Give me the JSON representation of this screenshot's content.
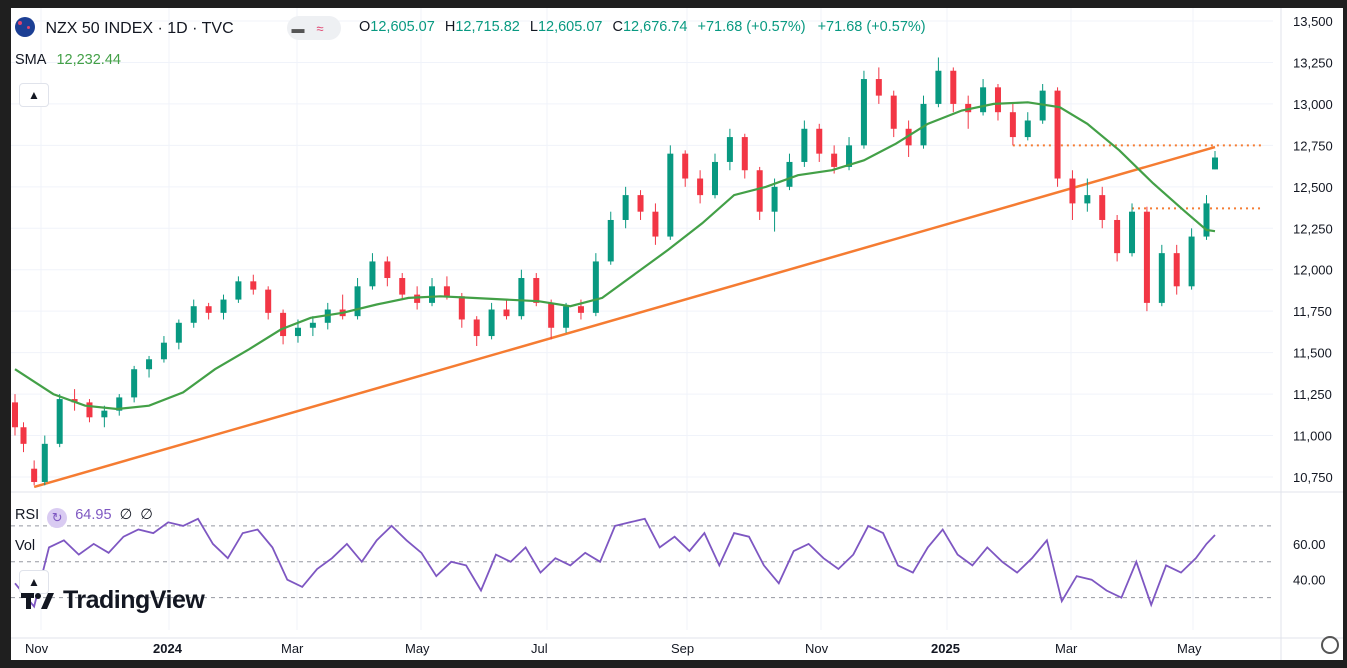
{
  "header": {
    "symbol_title": "NZX 50 INDEX · 1D · TVC",
    "ohlc": [
      {
        "label": "O",
        "value": "12,605.07"
      },
      {
        "label": "H",
        "value": "12,715.82"
      },
      {
        "label": "L",
        "value": "12,605.07"
      },
      {
        "label": "C",
        "value": "12,676.74"
      }
    ],
    "change": "+71.68 (+0.57%)",
    "change2": "+71.68 (+0.57%)",
    "sma_label": "SMA",
    "sma_value": "12,232.44",
    "rsi_label": "RSI",
    "rsi_value": "64.95",
    "rsi_extra1": "∅",
    "rsi_extra2": "∅",
    "vol_label": "Vol"
  },
  "brand": {
    "logo_text": "TradingView"
  },
  "colors": {
    "up": "#089981",
    "down": "#f23645",
    "sma": "#43a047",
    "trendline": "#f57c32",
    "rsi": "#7e57c2",
    "grid": "#f0f3fa"
  },
  "chart_data": {
    "type": "candlestick",
    "title": "NZX 50 INDEX",
    "interval": "1D",
    "x_ticks": [
      "Nov",
      "2024",
      "Mar",
      "May",
      "Jul",
      "Sep",
      "Nov",
      "2025",
      "Mar",
      "May"
    ],
    "y_ticks": [
      "13,500",
      "13,250",
      "13,000",
      "12,750",
      "12,500",
      "12,250",
      "12,000",
      "11,750",
      "11,500",
      "11,250",
      "11,000",
      "10,750"
    ],
    "ylim": [
      10600,
      13500
    ],
    "date_range": [
      "2023-10-23",
      "2025-05-09"
    ],
    "candles": [
      [
        "2023-10-23",
        11200,
        11250,
        11000,
        11050
      ],
      [
        "2023-10-27",
        11050,
        11080,
        10900,
        10950
      ],
      [
        "2023-11-01",
        10800,
        10850,
        10700,
        10720
      ],
      [
        "2023-11-06",
        10720,
        11000,
        10700,
        10950
      ],
      [
        "2023-11-13",
        10950,
        11250,
        10930,
        11220
      ],
      [
        "2023-11-20",
        11220,
        11280,
        11150,
        11200
      ],
      [
        "2023-11-27",
        11200,
        11220,
        11080,
        11110
      ],
      [
        "2023-12-04",
        11110,
        11180,
        11050,
        11150
      ],
      [
        "2023-12-11",
        11150,
        11250,
        11120,
        11230
      ],
      [
        "2023-12-18",
        11230,
        11420,
        11200,
        11400
      ],
      [
        "2023-12-25",
        11400,
        11480,
        11350,
        11460
      ],
      [
        "2024-01-01",
        11460,
        11600,
        11440,
        11560
      ],
      [
        "2024-01-08",
        11560,
        11700,
        11520,
        11680
      ],
      [
        "2024-01-15",
        11680,
        11820,
        11650,
        11780
      ],
      [
        "2024-01-22",
        11780,
        11800,
        11700,
        11740
      ],
      [
        "2024-01-29",
        11740,
        11850,
        11700,
        11820
      ],
      [
        "2024-02-05",
        11820,
        11960,
        11800,
        11930
      ],
      [
        "2024-02-12",
        11930,
        11970,
        11850,
        11880
      ],
      [
        "2024-02-19",
        11880,
        11900,
        11700,
        11740
      ],
      [
        "2024-02-26",
        11740,
        11760,
        11550,
        11600
      ],
      [
        "2024-03-04",
        11600,
        11700,
        11560,
        11650
      ],
      [
        "2024-03-11",
        11650,
        11720,
        11600,
        11680
      ],
      [
        "2024-03-18",
        11680,
        11800,
        11640,
        11760
      ],
      [
        "2024-03-25",
        11760,
        11850,
        11700,
        11720
      ],
      [
        "2024-04-01",
        11720,
        11950,
        11700,
        11900
      ],
      [
        "2024-04-08",
        11900,
        12100,
        11880,
        12050
      ],
      [
        "2024-04-15",
        12050,
        12080,
        11900,
        11950
      ],
      [
        "2024-04-22",
        11950,
        11980,
        11820,
        11850
      ],
      [
        "2024-04-29",
        11850,
        11900,
        11760,
        11800
      ],
      [
        "2024-05-06",
        11800,
        11950,
        11780,
        11900
      ],
      [
        "2024-05-13",
        11900,
        11960,
        11820,
        11840
      ],
      [
        "2024-05-20",
        11840,
        11860,
        11650,
        11700
      ],
      [
        "2024-05-27",
        11700,
        11720,
        11540,
        11600
      ],
      [
        "2024-06-03",
        11600,
        11800,
        11580,
        11760
      ],
      [
        "2024-06-10",
        11760,
        11820,
        11700,
        11720
      ],
      [
        "2024-06-17",
        11720,
        12000,
        11700,
        11950
      ],
      [
        "2024-06-24",
        11950,
        11980,
        11780,
        11800
      ],
      [
        "2024-07-01",
        11800,
        11820,
        11580,
        11650
      ],
      [
        "2024-07-08",
        11650,
        11800,
        11620,
        11780
      ],
      [
        "2024-07-15",
        11780,
        11820,
        11700,
        11740
      ],
      [
        "2024-07-22",
        11740,
        12100,
        11720,
        12050
      ],
      [
        "2024-07-29",
        12050,
        12350,
        12030,
        12300
      ],
      [
        "2024-08-05",
        12300,
        12500,
        12250,
        12450
      ],
      [
        "2024-08-12",
        12450,
        12480,
        12300,
        12350
      ],
      [
        "2024-08-19",
        12350,
        12400,
        12150,
        12200
      ],
      [
        "2024-08-26",
        12200,
        12750,
        12180,
        12700
      ],
      [
        "2024-09-02",
        12700,
        12720,
        12500,
        12550
      ],
      [
        "2024-09-09",
        12550,
        12600,
        12400,
        12450
      ],
      [
        "2024-09-16",
        12450,
        12700,
        12430,
        12650
      ],
      [
        "2024-09-23",
        12650,
        12850,
        12600,
        12800
      ],
      [
        "2024-09-30",
        12800,
        12820,
        12550,
        12600
      ],
      [
        "2024-10-07",
        12600,
        12620,
        12300,
        12350
      ],
      [
        "2024-10-14",
        12350,
        12550,
        12230,
        12500
      ],
      [
        "2024-10-21",
        12500,
        12700,
        12480,
        12650
      ],
      [
        "2024-10-28",
        12650,
        12900,
        12620,
        12850
      ],
      [
        "2024-11-04",
        12850,
        12880,
        12650,
        12700
      ],
      [
        "2024-11-11",
        12700,
        12750,
        12580,
        12620
      ],
      [
        "2024-11-18",
        12620,
        12800,
        12600,
        12750
      ],
      [
        "2024-11-25",
        12750,
        13200,
        12730,
        13150
      ],
      [
        "2024-12-02",
        13150,
        13220,
        13000,
        13050
      ],
      [
        "2024-12-09",
        13050,
        13080,
        12800,
        12850
      ],
      [
        "2024-12-16",
        12850,
        12900,
        12680,
        12750
      ],
      [
        "2024-12-23",
        12750,
        13050,
        12730,
        13000
      ],
      [
        "2024-12-30",
        13000,
        13280,
        12980,
        13200
      ],
      [
        "2025-01-06",
        13200,
        13220,
        12950,
        13000
      ],
      [
        "2025-01-13",
        13000,
        13050,
        12850,
        12950
      ],
      [
        "2025-01-20",
        12950,
        13150,
        12930,
        13100
      ],
      [
        "2025-01-27",
        13100,
        13120,
        12900,
        12950
      ],
      [
        "2025-02-03",
        12950,
        13000,
        12750,
        12800
      ],
      [
        "2025-02-10",
        12800,
        12950,
        12780,
        12900
      ],
      [
        "2025-02-17",
        12900,
        13120,
        12880,
        13080
      ],
      [
        "2025-02-24",
        13080,
        13100,
        12500,
        12550
      ],
      [
        "2025-03-03",
        12550,
        12600,
        12300,
        12400
      ],
      [
        "2025-03-10",
        12400,
        12550,
        12350,
        12450
      ],
      [
        "2025-03-17",
        12450,
        12500,
        12250,
        12300
      ],
      [
        "2025-03-24",
        12300,
        12330,
        12050,
        12100
      ],
      [
        "2025-03-31",
        12100,
        12400,
        12080,
        12350
      ],
      [
        "2025-04-07",
        12350,
        12380,
        11750,
        11800
      ],
      [
        "2025-04-14",
        11800,
        12150,
        11780,
        12100
      ],
      [
        "2025-04-21",
        12100,
        12150,
        11850,
        11900
      ],
      [
        "2025-04-28",
        11900,
        12250,
        11880,
        12200
      ],
      [
        "2025-05-05",
        12200,
        12450,
        12180,
        12400
      ],
      [
        "2025-05-09",
        12605.07,
        12715.82,
        12605.07,
        12676.74
      ]
    ],
    "sma_series": {
      "name": "SMA",
      "points": [
        [
          "2023-10-23",
          11400
        ],
        [
          "2023-11-10",
          11250
        ],
        [
          "2023-11-25",
          11180
        ],
        [
          "2023-12-10",
          11160
        ],
        [
          "2023-12-25",
          11180
        ],
        [
          "2024-01-10",
          11260
        ],
        [
          "2024-01-25",
          11400
        ],
        [
          "2024-02-10",
          11520
        ],
        [
          "2024-02-25",
          11640
        ],
        [
          "2024-03-10",
          11710
        ],
        [
          "2024-03-25",
          11740
        ],
        [
          "2024-04-10",
          11790
        ],
        [
          "2024-04-25",
          11830
        ],
        [
          "2024-05-10",
          11840
        ],
        [
          "2024-05-25",
          11830
        ],
        [
          "2024-06-10",
          11820
        ],
        [
          "2024-06-25",
          11810
        ],
        [
          "2024-07-10",
          11780
        ],
        [
          "2024-07-25",
          11830
        ],
        [
          "2024-08-10",
          11980
        ],
        [
          "2024-08-25",
          12120
        ],
        [
          "2024-09-10",
          12280
        ],
        [
          "2024-09-25",
          12450
        ],
        [
          "2024-10-10",
          12500
        ],
        [
          "2024-10-25",
          12570
        ],
        [
          "2024-11-10",
          12600
        ],
        [
          "2024-11-25",
          12660
        ],
        [
          "2024-12-10",
          12760
        ],
        [
          "2024-12-25",
          12880
        ],
        [
          "2025-01-10",
          12960
        ],
        [
          "2025-01-25",
          13000
        ],
        [
          "2025-02-10",
          13010
        ],
        [
          "2025-02-25",
          12980
        ],
        [
          "2025-03-10",
          12880
        ],
        [
          "2025-03-25",
          12720
        ],
        [
          "2025-04-10",
          12520
        ],
        [
          "2025-04-25",
          12350
        ],
        [
          "2025-05-05",
          12240
        ],
        [
          "2025-05-09",
          12232.44
        ]
      ]
    },
    "trendline": {
      "from": [
        "2023-11-01",
        10690
      ],
      "to": [
        "2025-05-09",
        12740
      ]
    },
    "resistance_levels": [
      {
        "value": 12750,
        "from": "2025-02-03"
      },
      {
        "value": 12370,
        "from": "2025-03-31"
      }
    ],
    "rsi": {
      "value": 64.95,
      "y_ticks": [
        "60.00",
        "40.00"
      ],
      "levels": [
        70,
        50,
        30
      ],
      "ylim": [
        22,
        80
      ],
      "points": [
        [
          "2023-10-23",
          38
        ],
        [
          "2023-11-01",
          25
        ],
        [
          "2023-11-08",
          58
        ],
        [
          "2023-11-15",
          62
        ],
        [
          "2023-11-22",
          54
        ],
        [
          "2023-11-29",
          60
        ],
        [
          "2023-12-06",
          55
        ],
        [
          "2023-12-13",
          64
        ],
        [
          "2023-12-20",
          68
        ],
        [
          "2023-12-27",
          66
        ],
        [
          "2024-01-03",
          72
        ],
        [
          "2024-01-10",
          70
        ],
        [
          "2024-01-17",
          74
        ],
        [
          "2024-01-24",
          60
        ],
        [
          "2024-01-31",
          52
        ],
        [
          "2024-02-07",
          66
        ],
        [
          "2024-02-14",
          68
        ],
        [
          "2024-02-21",
          58
        ],
        [
          "2024-02-28",
          40
        ],
        [
          "2024-03-06",
          36
        ],
        [
          "2024-03-13",
          46
        ],
        [
          "2024-03-20",
          52
        ],
        [
          "2024-03-27",
          60
        ],
        [
          "2024-04-03",
          50
        ],
        [
          "2024-04-10",
          62
        ],
        [
          "2024-04-17",
          70
        ],
        [
          "2024-04-24",
          62
        ],
        [
          "2024-05-01",
          55
        ],
        [
          "2024-05-08",
          42
        ],
        [
          "2024-05-15",
          50
        ],
        [
          "2024-05-22",
          48
        ],
        [
          "2024-05-29",
          34
        ],
        [
          "2024-06-05",
          54
        ],
        [
          "2024-06-12",
          50
        ],
        [
          "2024-06-19",
          58
        ],
        [
          "2024-06-26",
          44
        ],
        [
          "2024-07-03",
          52
        ],
        [
          "2024-07-10",
          48
        ],
        [
          "2024-07-17",
          55
        ],
        [
          "2024-07-24",
          50
        ],
        [
          "2024-07-31",
          70
        ],
        [
          "2024-08-07",
          72
        ],
        [
          "2024-08-14",
          74
        ],
        [
          "2024-08-21",
          58
        ],
        [
          "2024-08-28",
          64
        ],
        [
          "2024-09-04",
          56
        ],
        [
          "2024-09-11",
          66
        ],
        [
          "2024-09-18",
          48
        ],
        [
          "2024-09-25",
          66
        ],
        [
          "2024-10-02",
          64
        ],
        [
          "2024-10-09",
          48
        ],
        [
          "2024-10-16",
          38
        ],
        [
          "2024-10-23",
          56
        ],
        [
          "2024-10-30",
          60
        ],
        [
          "2024-11-06",
          52
        ],
        [
          "2024-11-13",
          46
        ],
        [
          "2024-11-20",
          54
        ],
        [
          "2024-11-27",
          70
        ],
        [
          "2024-12-04",
          66
        ],
        [
          "2024-12-11",
          48
        ],
        [
          "2024-12-18",
          44
        ],
        [
          "2024-12-25",
          58
        ],
        [
          "2025-01-01",
          68
        ],
        [
          "2025-01-08",
          54
        ],
        [
          "2025-01-15",
          48
        ],
        [
          "2025-01-22",
          58
        ],
        [
          "2025-01-29",
          50
        ],
        [
          "2025-02-05",
          44
        ],
        [
          "2025-02-12",
          52
        ],
        [
          "2025-02-19",
          62
        ],
        [
          "2025-02-26",
          28
        ],
        [
          "2025-03-05",
          42
        ],
        [
          "2025-03-12",
          40
        ],
        [
          "2025-03-19",
          34
        ],
        [
          "2025-03-26",
          30
        ],
        [
          "2025-04-02",
          50
        ],
        [
          "2025-04-09",
          26
        ],
        [
          "2025-04-16",
          48
        ],
        [
          "2025-04-23",
          44
        ],
        [
          "2025-04-30",
          52
        ],
        [
          "2025-05-05",
          60
        ],
        [
          "2025-05-09",
          64.95
        ]
      ]
    }
  }
}
